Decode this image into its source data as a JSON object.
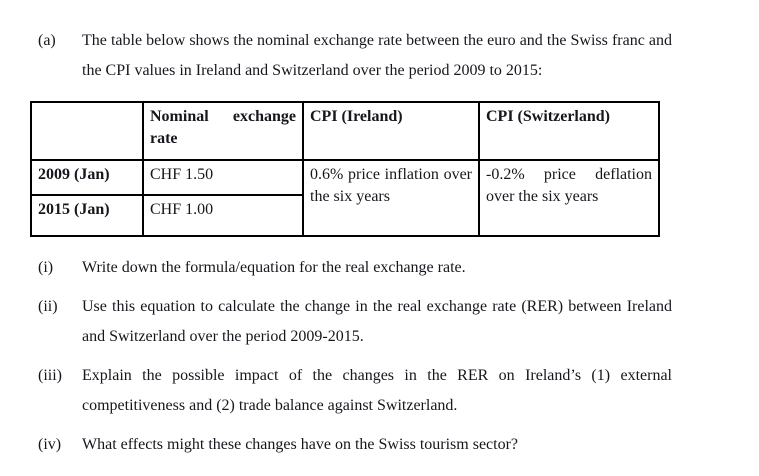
{
  "intro": {
    "label": "(a)",
    "text": "The table below shows the nominal exchange rate between the euro and the Swiss franc and the CPI values in Ireland and Switzerland over the period 2009 to 2015:"
  },
  "table": {
    "headers": {
      "blank": "",
      "nominal_rate": "Nominal exchange rate",
      "cpi_ireland": "CPI (Ireland)",
      "cpi_switzerland": "CPI (Switzerland)"
    },
    "rows": [
      {
        "year": "2009 (Jan)",
        "rate": "CHF 1.50"
      },
      {
        "year": "2015 (Jan)",
        "rate": "CHF 1.00"
      }
    ],
    "cpi_ireland_value": "0.6% price inflation over the six years",
    "cpi_switzerland_value": "-0.2% price deflation over the six years"
  },
  "questions": [
    {
      "label": "(i)",
      "text": "Write down the formula/equation for the real exchange rate."
    },
    {
      "label": "(ii)",
      "text": "Use this equation to calculate the change in the real exchange rate (RER) between Ireland and Switzerland over the period 2009-2015."
    },
    {
      "label": "(iii)",
      "text": "Explain the possible impact of the changes in the RER on Ireland’s (1) external competitiveness and (2) trade balance against Switzerland."
    },
    {
      "label": "(iv)",
      "text": "What effects might these changes have on the Swiss tourism sector?"
    }
  ]
}
